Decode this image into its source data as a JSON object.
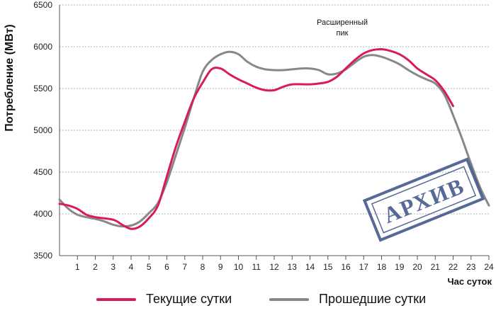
{
  "chart_data": {
    "type": "line",
    "xlabel": "Час суток",
    "ylabel": "Потребление (МВт)",
    "xlim": [
      0,
      24
    ],
    "ylim": [
      3500,
      6500
    ],
    "x_ticks": [
      "1",
      "2",
      "3",
      "4",
      "5",
      "6",
      "7",
      "8",
      "9",
      "10",
      "11",
      "12",
      "13",
      "14",
      "15",
      "16",
      "17",
      "18",
      "19",
      "20",
      "21",
      "22",
      "23",
      "24"
    ],
    "y_ticks": [
      "3500",
      "4000",
      "4500",
      "5000",
      "5500",
      "6000",
      "6500"
    ],
    "grid": true,
    "annotation": [
      "Расширенный",
      "пик"
    ],
    "stamp_text": "АРХИВ",
    "legend_placement": "bottom",
    "series": [
      {
        "name": "Текущие сутки",
        "color": "#d81b60",
        "x": [
          0,
          0.5,
          1,
          1.5,
          2,
          3,
          3.5,
          4,
          4.5,
          5,
          5.5,
          6,
          6.5,
          7,
          7.5,
          8,
          8.5,
          9,
          9.5,
          10,
          10.5,
          11,
          11.5,
          12,
          12.5,
          13,
          14,
          14.5,
          15,
          15.5,
          16,
          16.5,
          17,
          17.5,
          18,
          18.5,
          19,
          19.5,
          20,
          20.5,
          21,
          21.5,
          22
        ],
        "y": [
          4120,
          4100,
          4060,
          3990,
          3960,
          3930,
          3870,
          3820,
          3850,
          3950,
          4100,
          4450,
          4800,
          5100,
          5380,
          5570,
          5730,
          5740,
          5670,
          5610,
          5560,
          5510,
          5480,
          5480,
          5520,
          5550,
          5550,
          5560,
          5580,
          5640,
          5740,
          5840,
          5920,
          5960,
          5970,
          5950,
          5910,
          5840,
          5740,
          5670,
          5600,
          5470,
          5290
        ]
      },
      {
        "name": "Прошедшие сутки",
        "color": "#888888",
        "x": [
          0,
          0.5,
          1,
          1.5,
          2,
          2.5,
          3,
          3.5,
          4,
          4.5,
          5,
          5.5,
          6,
          6.5,
          7,
          7.5,
          8,
          8.5,
          9,
          9.5,
          10,
          10.5,
          11,
          11.5,
          12,
          12.5,
          13,
          13.5,
          14,
          14.5,
          15,
          15.5,
          16,
          16.5,
          17,
          17.5,
          18,
          18.5,
          19,
          19.5,
          20,
          20.5,
          21,
          21.5,
          22,
          22.5,
          23,
          23.5,
          24
        ],
        "y": [
          4170,
          4060,
          3990,
          3960,
          3940,
          3910,
          3870,
          3850,
          3860,
          3910,
          4010,
          4130,
          4380,
          4700,
          5030,
          5380,
          5700,
          5840,
          5910,
          5940,
          5910,
          5820,
          5760,
          5730,
          5720,
          5720,
          5730,
          5740,
          5740,
          5720,
          5670,
          5680,
          5730,
          5810,
          5880,
          5900,
          5880,
          5840,
          5790,
          5720,
          5660,
          5610,
          5560,
          5430,
          5180,
          4900,
          4600,
          4320,
          4100
        ]
      }
    ]
  }
}
